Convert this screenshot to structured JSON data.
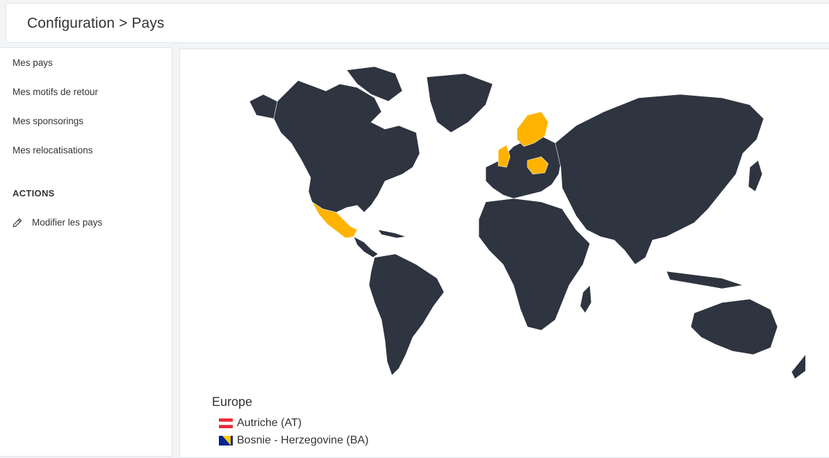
{
  "header": {
    "title": "Configuration > Pays"
  },
  "sidebar": {
    "items": [
      {
        "label": "Mes pays"
      },
      {
        "label": "Mes motifs de retour"
      },
      {
        "label": "Mes sponsorings"
      },
      {
        "label": "Mes relocatisations"
      }
    ],
    "actions_title": "ACTIONS",
    "actions": [
      {
        "label": "Modifier les pays",
        "icon": "pencil-icon"
      }
    ]
  },
  "map": {
    "base_color": "#2e3440",
    "highlight_color": "#ffb300",
    "border_color": "#ffffff"
  },
  "countries": {
    "region": "Europe",
    "list": [
      {
        "name": "Autriche (AT)",
        "flag": "austria-flag"
      },
      {
        "name": "Bosnie - Herzegovine (BA)",
        "flag": "bosnia-flag"
      }
    ]
  }
}
